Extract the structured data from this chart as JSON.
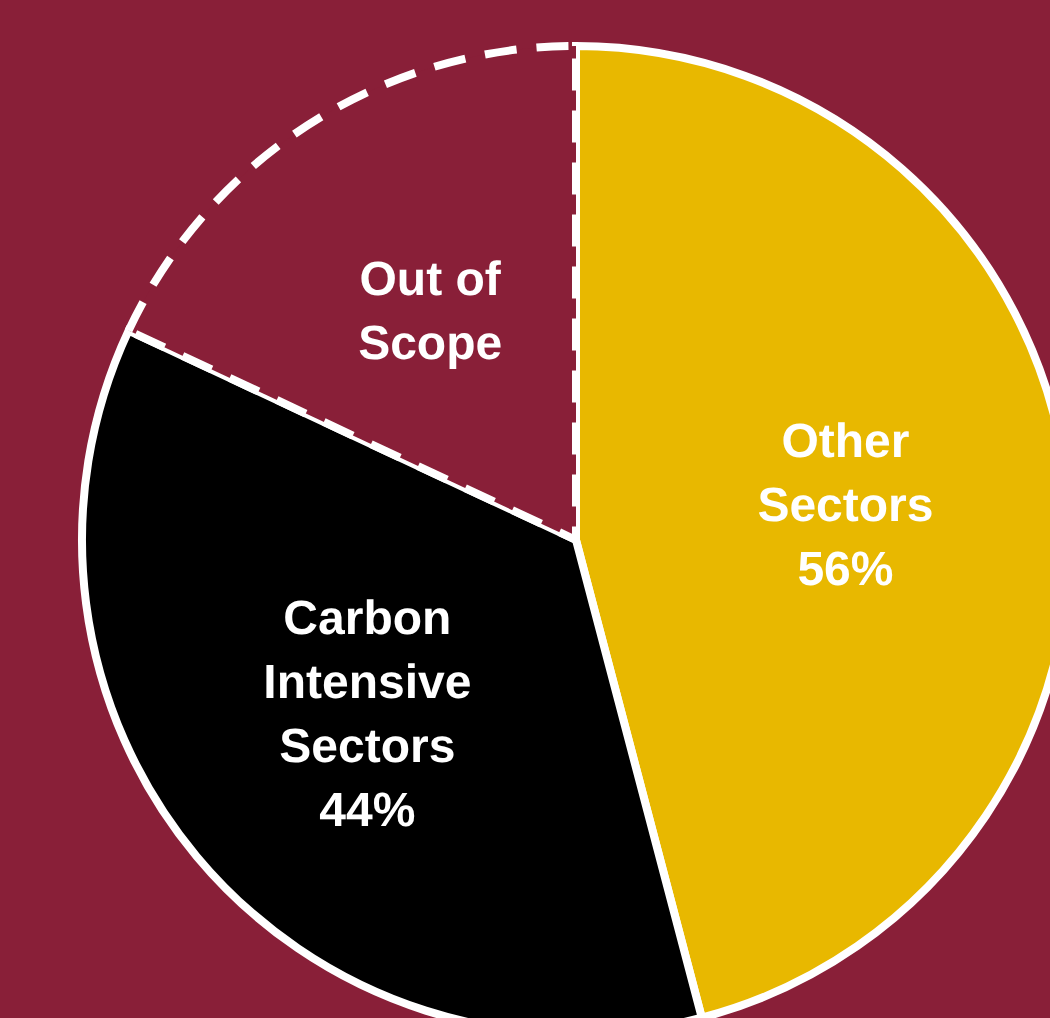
{
  "chart_data": {
    "type": "pie",
    "categories": [
      "Other Sectors",
      "Carbon Intensive Sectors",
      "Out of Scope"
    ],
    "values": [
      56,
      44,
      22
    ],
    "value_labels": [
      "56%",
      "44%",
      null
    ],
    "colors": [
      "#e8b800",
      "#000000",
      "#891f38"
    ]
  }
}
